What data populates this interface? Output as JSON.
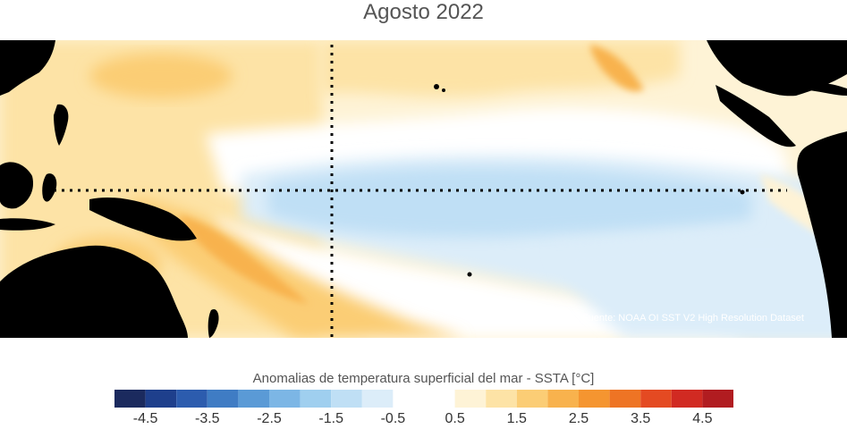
{
  "title": "Agosto 2022",
  "source": "Fuente: NOAA OI SST V2 High Resolution Dataset",
  "colorbar": {
    "title": "Anomalias de temperatura superficial del mar - SSTA  [°C]",
    "ticks": [
      "-4.5",
      "-3.5",
      "-2.5",
      "-1.5",
      "-0.5",
      "0.5",
      "1.5",
      "2.5",
      "3.5",
      "4.5"
    ],
    "tick_values": [
      -4.5,
      -3.5,
      -2.5,
      -1.5,
      -0.5,
      0.5,
      1.5,
      2.5,
      3.5,
      4.5
    ],
    "range": [
      -5,
      5
    ],
    "bins": [
      {
        "min": -5.0,
        "max": -4.5,
        "color": "#1b2a5e"
      },
      {
        "min": -4.5,
        "max": -4.0,
        "color": "#1e3f8c"
      },
      {
        "min": -4.0,
        "max": -3.5,
        "color": "#2c5cae"
      },
      {
        "min": -3.5,
        "max": -3.0,
        "color": "#3f7cc4"
      },
      {
        "min": -3.0,
        "max": -2.5,
        "color": "#5a9ad6"
      },
      {
        "min": -2.5,
        "max": -2.0,
        "color": "#7cb6e5"
      },
      {
        "min": -2.0,
        "max": -1.5,
        "color": "#9fcfef"
      },
      {
        "min": -1.5,
        "max": -1.0,
        "color": "#bfdff5"
      },
      {
        "min": -1.0,
        "max": -0.5,
        "color": "#dcedf9"
      },
      {
        "min": -0.5,
        "max": 0.5,
        "color": "#ffffff"
      },
      {
        "min": 0.5,
        "max": 1.0,
        "color": "#fef3d6"
      },
      {
        "min": 1.0,
        "max": 1.5,
        "color": "#fde3a6"
      },
      {
        "min": 1.5,
        "max": 2.0,
        "color": "#fbcd75"
      },
      {
        "min": 2.0,
        "max": 2.5,
        "color": "#f8b24d"
      },
      {
        "min": 2.5,
        "max": 3.0,
        "color": "#f59530"
      },
      {
        "min": 3.0,
        "max": 3.5,
        "color": "#ee7424"
      },
      {
        "min": 3.5,
        "max": 4.0,
        "color": "#e44a22"
      },
      {
        "min": 4.0,
        "max": 4.5,
        "color": "#d12a22"
      },
      {
        "min": 4.5,
        "max": 5.0,
        "color": "#b11c20"
      }
    ]
  },
  "colors": {
    "land": "#000000",
    "neutral": "#ffffff",
    "warm_light": "#fef3d6",
    "warm_mid": "#fde3a6",
    "warm": "#fbcd75",
    "warm_strong": "#f8b24d",
    "warm_hot": "#f59530",
    "cool_light": "#dcedf9",
    "cool_mid": "#bfdff5"
  },
  "reference_lines": [
    "equator-dotted-line",
    "dateline-dotted-line"
  ]
}
